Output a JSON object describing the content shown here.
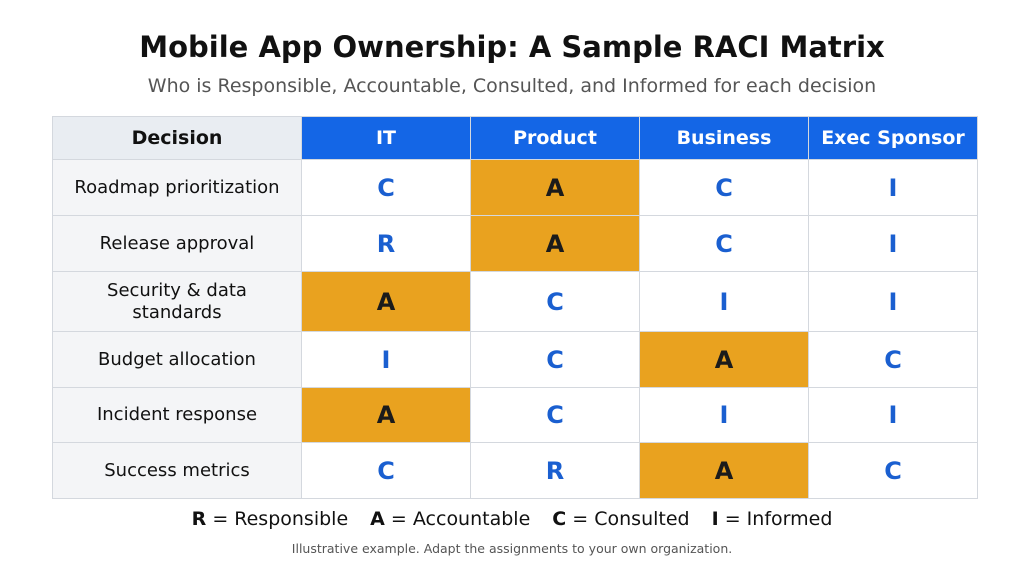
{
  "header": {
    "title": "Mobile App Ownership: A Sample RACI Matrix",
    "subtitle": "Who is Responsible, Accountable, Consulted, and Informed for each decision"
  },
  "table": {
    "columns": [
      "Decision",
      "IT",
      "Product",
      "Business",
      "Exec Sponsor"
    ],
    "rows": [
      [
        "Roadmap prioritization",
        "C",
        "A",
        "C",
        "I"
      ],
      [
        "Release approval",
        "R",
        "A",
        "C",
        "I"
      ],
      [
        "Security & data standards",
        "A",
        "C",
        "I",
        "I"
      ],
      [
        "Budget allocation",
        "I",
        "C",
        "A",
        "C"
      ],
      [
        "Incident response",
        "A",
        "C",
        "I",
        "I"
      ],
      [
        "Success metrics",
        "C",
        "R",
        "A",
        "C"
      ]
    ]
  },
  "legend": [
    {
      "key": "R",
      "label": "= Responsible"
    },
    {
      "key": "A",
      "label": "= Accountable"
    },
    {
      "key": "C",
      "label": "= Consulted"
    },
    {
      "key": "I",
      "label": "= Informed"
    }
  ],
  "footnote": "Illustrative example. Adapt the assignments to your own organization."
}
